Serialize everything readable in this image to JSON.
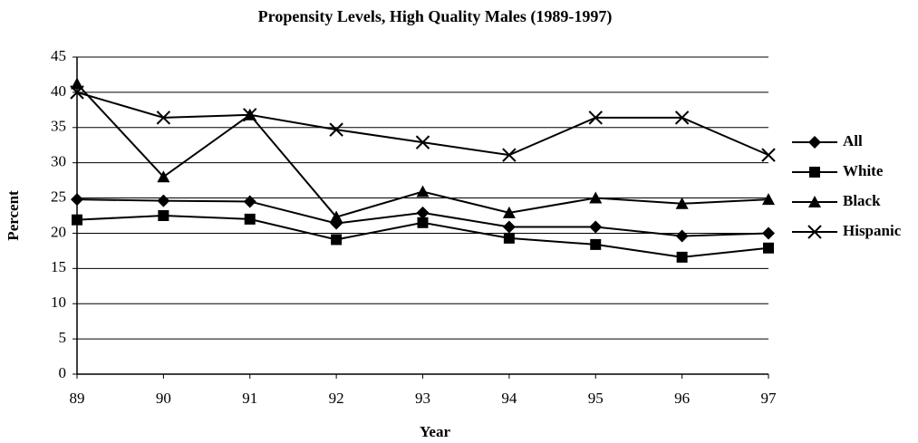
{
  "chart_data": {
    "type": "line",
    "title": "Propensity Levels, High Quality Males (1989-1997)",
    "x_label": "Year",
    "y_label": "Percent",
    "categories": [
      "89",
      "90",
      "91",
      "92",
      "93",
      "94",
      "95",
      "96",
      "97"
    ],
    "ylim": [
      0,
      45
    ],
    "yticks": [
      0,
      5,
      10,
      15,
      20,
      25,
      30,
      35,
      40,
      45
    ],
    "grid": true,
    "legend": "right",
    "series": [
      {
        "name": "All",
        "color": "#000000",
        "marker": "diamond",
        "values": [
          24.8,
          24.6,
          24.5,
          21.4,
          22.9,
          20.9,
          20.9,
          19.6,
          20.0
        ]
      },
      {
        "name": "White",
        "color": "#000000",
        "marker": "square",
        "values": [
          21.9,
          22.5,
          22.0,
          19.1,
          21.5,
          19.3,
          18.4,
          16.6,
          17.9
        ]
      },
      {
        "name": "Black",
        "color": "#000000",
        "marker": "triangle",
        "values": [
          41.2,
          28.0,
          36.8,
          22.3,
          25.9,
          22.9,
          25.0,
          24.2,
          24.8
        ]
      },
      {
        "name": "Hispanic",
        "color": "#000000",
        "marker": "x",
        "values": [
          40.0,
          36.4,
          36.8,
          34.7,
          32.9,
          31.1,
          36.4,
          36.4,
          31.1
        ]
      }
    ]
  }
}
